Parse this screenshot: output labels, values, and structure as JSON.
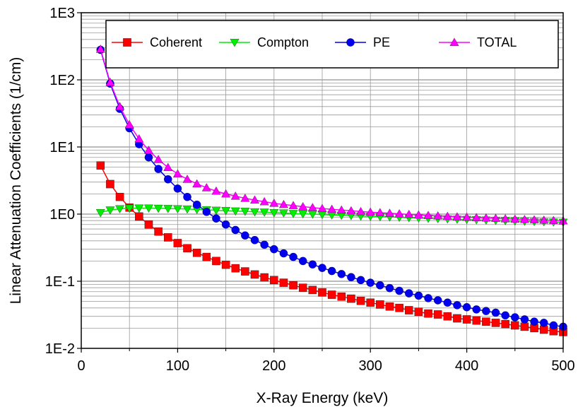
{
  "chart_data": {
    "type": "line",
    "title": "",
    "xlabel": "X-Ray Energy (keV)",
    "ylabel": "Linear Attenuation Coefficients (1/cm)",
    "xlim": [
      0,
      500
    ],
    "ylim": [
      0.01,
      1000
    ],
    "yscale": "log",
    "grid": true,
    "legend_position": "top",
    "x_ticks": [
      0,
      100,
      200,
      300,
      400,
      500
    ],
    "x_tick_labels": [
      "0",
      "100",
      "200",
      "300",
      "400",
      "500"
    ],
    "y_ticks": [
      0.01,
      0.1,
      1,
      10,
      100,
      1000
    ],
    "y_tick_labels": [
      "1E-2",
      "1E-1",
      "1E0",
      "1E1",
      "1E2",
      "1E3"
    ],
    "x": [
      20,
      30,
      40,
      50,
      60,
      70,
      80,
      90,
      100,
      110,
      120,
      130,
      140,
      150,
      160,
      170,
      180,
      190,
      200,
      210,
      220,
      230,
      240,
      250,
      260,
      270,
      280,
      290,
      300,
      310,
      320,
      330,
      340,
      350,
      360,
      370,
      380,
      390,
      400,
      410,
      420,
      430,
      440,
      450,
      460,
      470,
      480,
      490,
      500
    ],
    "series": [
      {
        "name": "Coherent",
        "color": "#ff0000",
        "marker": "square",
        "values": [
          5.3,
          2.8,
          1.8,
          1.25,
          0.92,
          0.7,
          0.55,
          0.45,
          0.37,
          0.31,
          0.265,
          0.23,
          0.2,
          0.176,
          0.156,
          0.14,
          0.126,
          0.114,
          0.104,
          0.095,
          0.087,
          0.08,
          0.074,
          0.068,
          0.063,
          0.059,
          0.055,
          0.051,
          0.048,
          0.045,
          0.042,
          0.04,
          0.037,
          0.035,
          0.033,
          0.032,
          0.03,
          0.028,
          0.027,
          0.026,
          0.025,
          0.024,
          0.023,
          0.022,
          0.021,
          0.02,
          0.019,
          0.018,
          0.0175
        ]
      },
      {
        "name": "Compton",
        "color": "#00ee00",
        "marker": "triangle-down",
        "values": [
          1.05,
          1.15,
          1.2,
          1.22,
          1.23,
          1.23,
          1.22,
          1.21,
          1.2,
          1.19,
          1.17,
          1.16,
          1.14,
          1.13,
          1.11,
          1.1,
          1.08,
          1.07,
          1.05,
          1.04,
          1.02,
          1.01,
          1.0,
          0.985,
          0.97,
          0.96,
          0.95,
          0.935,
          0.925,
          0.915,
          0.905,
          0.895,
          0.885,
          0.875,
          0.865,
          0.855,
          0.847,
          0.838,
          0.83,
          0.822,
          0.814,
          0.806,
          0.798,
          0.79,
          0.783,
          0.776,
          0.769,
          0.762,
          0.755
        ]
      },
      {
        "name": "PE",
        "color": "#0000ee",
        "marker": "circle",
        "values": [
          280,
          88,
          37,
          19,
          11,
          7,
          4.7,
          3.3,
          2.4,
          1.8,
          1.38,
          1.08,
          0.86,
          0.7,
          0.58,
          0.48,
          0.41,
          0.35,
          0.3,
          0.26,
          0.23,
          0.2,
          0.178,
          0.158,
          0.142,
          0.128,
          0.115,
          0.104,
          0.095,
          0.087,
          0.079,
          0.072,
          0.066,
          0.061,
          0.056,
          0.052,
          0.048,
          0.044,
          0.041,
          0.038,
          0.036,
          0.034,
          0.031,
          0.029,
          0.027,
          0.025,
          0.024,
          0.022,
          0.021
        ]
      },
      {
        "name": "TOTAL",
        "color": "#ff00ff",
        "marker": "triangle-up",
        "values": [
          286,
          92,
          40,
          21.5,
          13.2,
          8.9,
          6.5,
          4.95,
          3.97,
          3.3,
          2.82,
          2.47,
          2.2,
          2.0,
          1.85,
          1.72,
          1.62,
          1.53,
          1.45,
          1.39,
          1.34,
          1.29,
          1.25,
          1.21,
          1.18,
          1.15,
          1.12,
          1.09,
          1.07,
          1.05,
          1.03,
          1.01,
          0.99,
          0.97,
          0.955,
          0.94,
          0.925,
          0.91,
          0.898,
          0.886,
          0.875,
          0.864,
          0.852,
          0.841,
          0.831,
          0.821,
          0.812,
          0.802,
          0.794
        ]
      }
    ]
  }
}
